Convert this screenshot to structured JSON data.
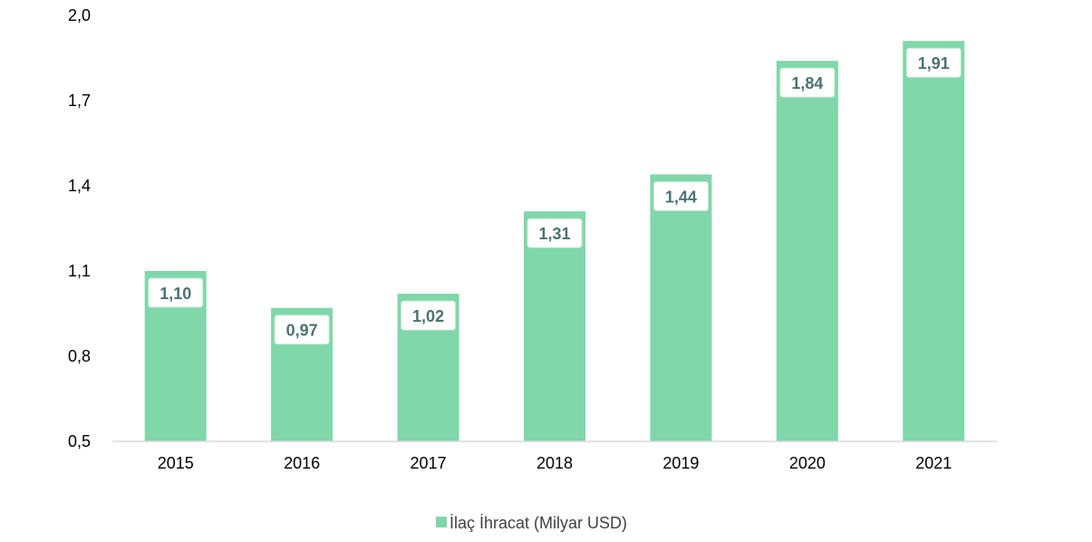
{
  "chart_data": {
    "type": "bar",
    "title": "",
    "xlabel": "",
    "ylabel": "",
    "categories": [
      "2015",
      "2016",
      "2017",
      "2018",
      "2019",
      "2020",
      "2021"
    ],
    "series": [
      {
        "name": "İlaç İhracat (Milyar USD)",
        "values": [
          1.1,
          0.97,
          1.02,
          1.31,
          1.44,
          1.84,
          1.91
        ],
        "data_labels": [
          "1,10",
          "0,97",
          "1,02",
          "1,31",
          "1,44",
          "1,84",
          "1,91"
        ]
      }
    ],
    "ylim": [
      0.5,
      2.0
    ],
    "y_ticks": [
      0.5,
      0.8,
      1.1,
      1.4,
      1.7,
      2.0
    ],
    "y_tick_labels": [
      "0,5",
      "0,8",
      "1,1",
      "1,4",
      "1,7",
      "2,0"
    ],
    "grid": false,
    "legend_position": "bottom",
    "colors": {
      "bar": "#7fd7aa",
      "data_label_text": "#4a7372",
      "data_label_box_border": "#c8e8d6",
      "axis_line": "#d9d9d9"
    }
  }
}
